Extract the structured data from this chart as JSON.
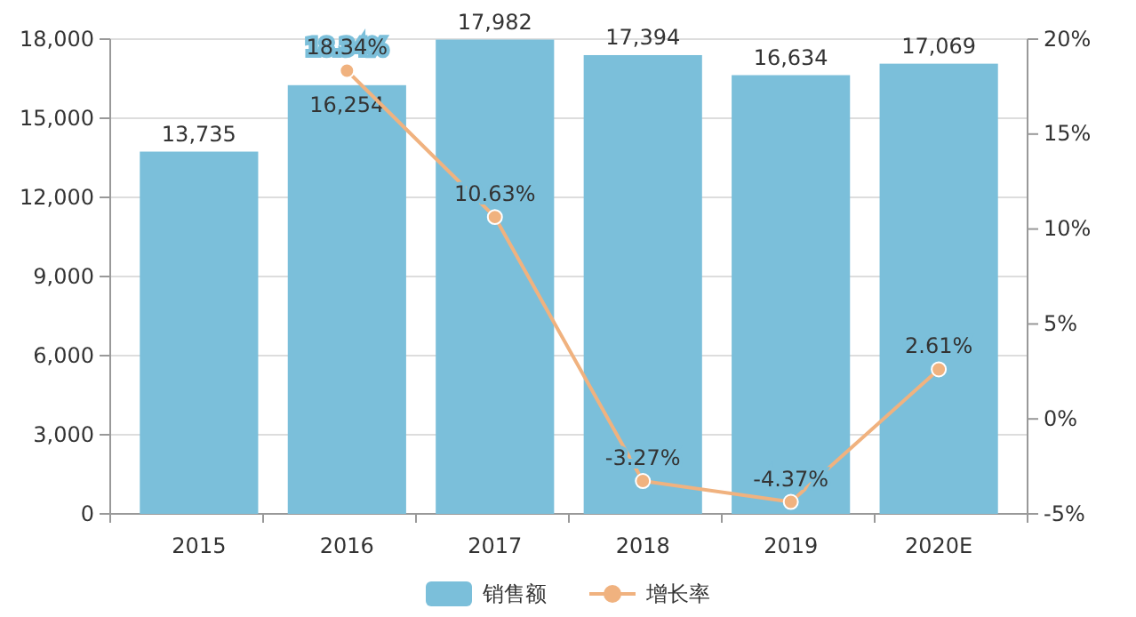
{
  "chart_data": {
    "type": "bar",
    "categories": [
      "2015",
      "2016",
      "2017",
      "2018",
      "2019",
      "2020E"
    ],
    "series": [
      {
        "name": "销售额",
        "color": "#7bbfda",
        "values": [
          13735,
          16254,
          17982,
          17394,
          16634,
          17069
        ],
        "value_labels": [
          "13,735",
          "16,254",
          "17,982",
          "17,394",
          "16,634",
          "17,069"
        ]
      },
      {
        "name": "增长率",
        "type": "line",
        "axis": "y2",
        "color": "#f0b27f",
        "marker": "circle",
        "values": [
          null,
          18.34,
          10.63,
          -3.27,
          -4.37,
          2.61
        ],
        "value_labels": [
          null,
          "18.34%",
          "10.63%",
          "-3.27%",
          "-4.37%",
          "2.61%"
        ]
      }
    ],
    "ylim": [
      0,
      18000
    ],
    "yticks": [
      {
        "value": 0,
        "label": "0"
      },
      {
        "value": 3000,
        "label": "3,000"
      },
      {
        "value": 6000,
        "label": "6,000"
      },
      {
        "value": 9000,
        "label": "9,000"
      },
      {
        "value": 12000,
        "label": "12,000"
      },
      {
        "value": 15000,
        "label": "15,000"
      },
      {
        "value": 18000,
        "label": "18,000"
      }
    ],
    "y2lim": [
      -5,
      20
    ],
    "y2ticks": [
      {
        "value": -5,
        "label": "-5%"
      },
      {
        "value": 0,
        "label": "0%"
      },
      {
        "value": 5,
        "label": "5%"
      },
      {
        "value": 10,
        "label": "10%"
      },
      {
        "value": 15,
        "label": "15%"
      },
      {
        "value": 20,
        "label": "20%"
      }
    ],
    "grid": "y",
    "legend": "bottom"
  }
}
